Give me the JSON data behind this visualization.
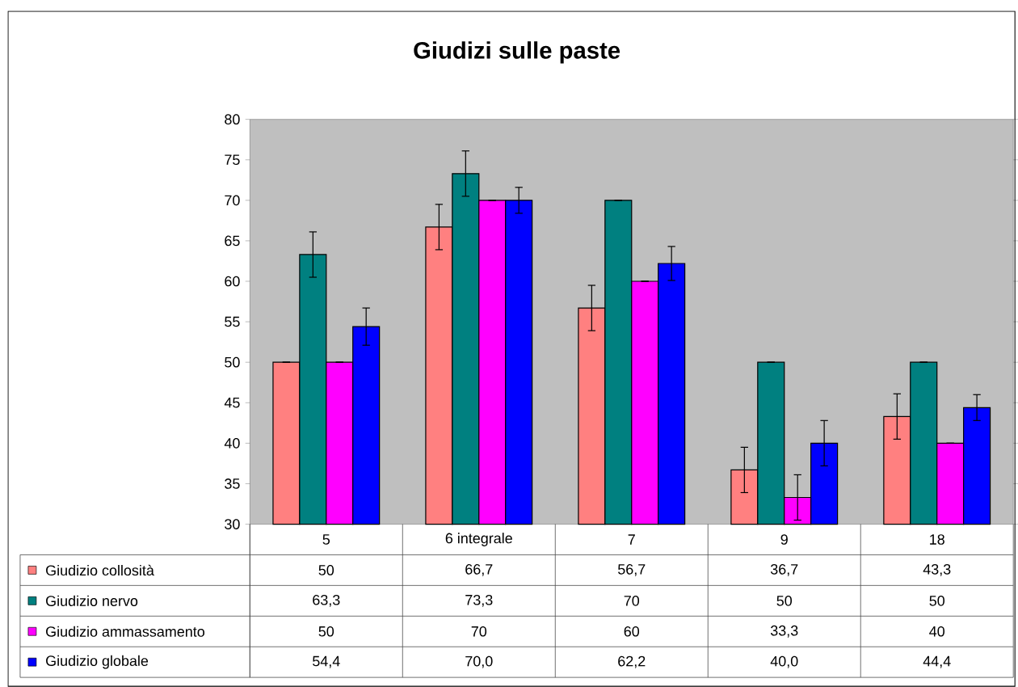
{
  "chart_data": {
    "type": "bar",
    "title": "Giudizi sulle paste",
    "categories": [
      "5",
      "6 integrale",
      "7",
      "9",
      "18"
    ],
    "ylim": [
      30,
      80
    ],
    "yticks": [
      30,
      35,
      40,
      45,
      50,
      55,
      60,
      65,
      70,
      75,
      80
    ],
    "legend": "bottom",
    "series": [
      {
        "name": "Giudizio collosità",
        "color": "#ff8080",
        "values": [
          50,
          66.7,
          56.7,
          36.7,
          43.3
        ],
        "errors": [
          0,
          2.8,
          2.8,
          2.8,
          2.8
        ],
        "value_labels": [
          "50",
          "66,7",
          "56,7",
          "36,7",
          "43,3"
        ]
      },
      {
        "name": "Giudizio nervo",
        "color": "#008080",
        "values": [
          63.3,
          73.3,
          70,
          50,
          50
        ],
        "errors": [
          2.8,
          2.8,
          0,
          0,
          0
        ],
        "value_labels": [
          "63,3",
          "73,3",
          "70",
          "50",
          "50"
        ]
      },
      {
        "name": "Giudizio ammassamento",
        "color": "#ff00ff",
        "values": [
          50,
          70,
          60,
          33.3,
          40
        ],
        "errors": [
          0,
          0,
          0,
          2.8,
          0
        ],
        "value_labels": [
          "50",
          "70",
          "60",
          "33,3",
          "40"
        ]
      },
      {
        "name": "Giudizio globale",
        "color": "#0000ff",
        "values": [
          54.4,
          70,
          62.2,
          40,
          44.4
        ],
        "errors": [
          2.3,
          1.6,
          2.1,
          2.8,
          1.6
        ],
        "value_labels": [
          "54,4",
          "70,0",
          "62,2",
          "40,0",
          "44,4"
        ]
      }
    ]
  }
}
